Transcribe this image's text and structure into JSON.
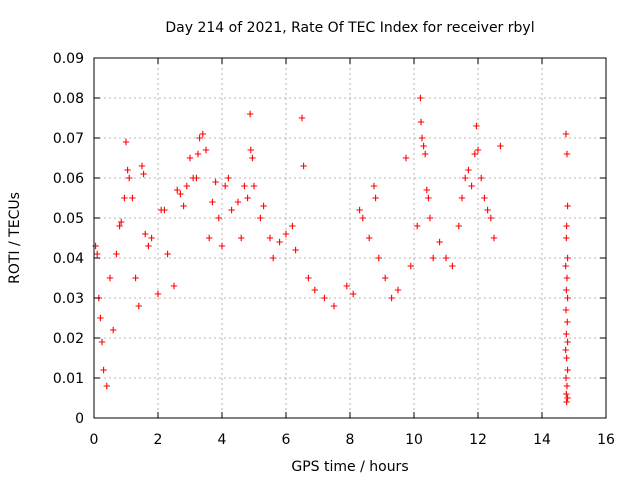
{
  "chart_data": {
    "type": "scatter",
    "title": "Day 214 of 2021, Rate Of TEC Index for receiver rbyl",
    "xlabel": "GPS time / hours",
    "ylabel": "ROTI / TECUs",
    "xlim": [
      0,
      16
    ],
    "ylim": [
      0,
      0.09
    ],
    "x_ticks": [
      "0",
      "2",
      "4",
      "6",
      "8",
      "10",
      "12",
      "14",
      "16"
    ],
    "y_ticks": [
      "0",
      "0.01",
      "0.02",
      "0.03",
      "0.04",
      "0.05",
      "0.06",
      "0.07",
      "0.08",
      "0.09"
    ],
    "grid": true,
    "marker": "plus",
    "series": [
      {
        "name": "ROTI",
        "color": "#ff0000",
        "points": [
          [
            0.05,
            0.043
          ],
          [
            0.1,
            0.041
          ],
          [
            0.15,
            0.03
          ],
          [
            0.2,
            0.025
          ],
          [
            0.25,
            0.019
          ],
          [
            0.3,
            0.012
          ],
          [
            0.4,
            0.008
          ],
          [
            0.5,
            0.035
          ],
          [
            0.6,
            0.022
          ],
          [
            0.7,
            0.041
          ],
          [
            0.8,
            0.048
          ],
          [
            0.85,
            0.049
          ],
          [
            0.95,
            0.055
          ],
          [
            1.0,
            0.069
          ],
          [
            1.05,
            0.062
          ],
          [
            1.1,
            0.06
          ],
          [
            1.2,
            0.055
          ],
          [
            1.3,
            0.035
          ],
          [
            1.4,
            0.028
          ],
          [
            1.5,
            0.063
          ],
          [
            1.55,
            0.061
          ],
          [
            1.6,
            0.046
          ],
          [
            1.7,
            0.043
          ],
          [
            1.8,
            0.045
          ],
          [
            2.0,
            0.031
          ],
          [
            2.1,
            0.052
          ],
          [
            2.2,
            0.052
          ],
          [
            2.3,
            0.041
          ],
          [
            2.5,
            0.033
          ],
          [
            2.6,
            0.057
          ],
          [
            2.7,
            0.056
          ],
          [
            2.8,
            0.053
          ],
          [
            2.9,
            0.058
          ],
          [
            3.0,
            0.065
          ],
          [
            3.1,
            0.06
          ],
          [
            3.2,
            0.06
          ],
          [
            3.25,
            0.066
          ],
          [
            3.3,
            0.07
          ],
          [
            3.4,
            0.071
          ],
          [
            3.5,
            0.067
          ],
          [
            3.6,
            0.045
          ],
          [
            3.7,
            0.054
          ],
          [
            3.8,
            0.059
          ],
          [
            3.9,
            0.05
          ],
          [
            4.0,
            0.043
          ],
          [
            4.1,
            0.058
          ],
          [
            4.2,
            0.06
          ],
          [
            4.3,
            0.052
          ],
          [
            4.5,
            0.054
          ],
          [
            4.6,
            0.045
          ],
          [
            4.7,
            0.058
          ],
          [
            4.8,
            0.055
          ],
          [
            4.88,
            0.076
          ],
          [
            4.9,
            0.067
          ],
          [
            4.95,
            0.065
          ],
          [
            5.0,
            0.058
          ],
          [
            5.2,
            0.05
          ],
          [
            5.3,
            0.053
          ],
          [
            5.5,
            0.045
          ],
          [
            5.6,
            0.04
          ],
          [
            5.8,
            0.044
          ],
          [
            6.0,
            0.046
          ],
          [
            6.2,
            0.048
          ],
          [
            6.3,
            0.042
          ],
          [
            6.5,
            0.075
          ],
          [
            6.55,
            0.063
          ],
          [
            6.7,
            0.035
          ],
          [
            6.9,
            0.032
          ],
          [
            7.2,
            0.03
          ],
          [
            7.5,
            0.028
          ],
          [
            7.9,
            0.033
          ],
          [
            8.1,
            0.031
          ],
          [
            8.3,
            0.052
          ],
          [
            8.4,
            0.05
          ],
          [
            8.6,
            0.045
          ],
          [
            8.75,
            0.058
          ],
          [
            8.8,
            0.055
          ],
          [
            8.9,
            0.04
          ],
          [
            9.1,
            0.035
          ],
          [
            9.3,
            0.03
          ],
          [
            9.5,
            0.032
          ],
          [
            9.75,
            0.065
          ],
          [
            9.9,
            0.038
          ],
          [
            10.1,
            0.048
          ],
          [
            10.2,
            0.08
          ],
          [
            10.22,
            0.074
          ],
          [
            10.25,
            0.07
          ],
          [
            10.3,
            0.068
          ],
          [
            10.35,
            0.066
          ],
          [
            10.4,
            0.057
          ],
          [
            10.45,
            0.055
          ],
          [
            10.5,
            0.05
          ],
          [
            10.6,
            0.04
          ],
          [
            10.8,
            0.044
          ],
          [
            11.0,
            0.04
          ],
          [
            11.2,
            0.038
          ],
          [
            11.4,
            0.048
          ],
          [
            11.5,
            0.055
          ],
          [
            11.6,
            0.06
          ],
          [
            11.7,
            0.062
          ],
          [
            11.8,
            0.058
          ],
          [
            11.9,
            0.066
          ],
          [
            11.95,
            0.073
          ],
          [
            12.0,
            0.067
          ],
          [
            12.1,
            0.06
          ],
          [
            12.2,
            0.055
          ],
          [
            12.3,
            0.052
          ],
          [
            12.4,
            0.05
          ],
          [
            12.5,
            0.045
          ],
          [
            12.7,
            0.068
          ],
          [
            14.75,
            0.071
          ],
          [
            14.78,
            0.066
          ],
          [
            14.8,
            0.053
          ],
          [
            14.77,
            0.048
          ],
          [
            14.76,
            0.045
          ],
          [
            14.8,
            0.04
          ],
          [
            14.74,
            0.038
          ],
          [
            14.78,
            0.035
          ],
          [
            14.76,
            0.032
          ],
          [
            14.8,
            0.03
          ],
          [
            14.75,
            0.027
          ],
          [
            14.79,
            0.024
          ],
          [
            14.76,
            0.021
          ],
          [
            14.8,
            0.019
          ],
          [
            14.74,
            0.017
          ],
          [
            14.77,
            0.015
          ],
          [
            14.8,
            0.012
          ],
          [
            14.75,
            0.01
          ],
          [
            14.78,
            0.008
          ],
          [
            14.76,
            0.006
          ],
          [
            14.8,
            0.005
          ],
          [
            14.77,
            0.004
          ]
        ]
      }
    ]
  }
}
